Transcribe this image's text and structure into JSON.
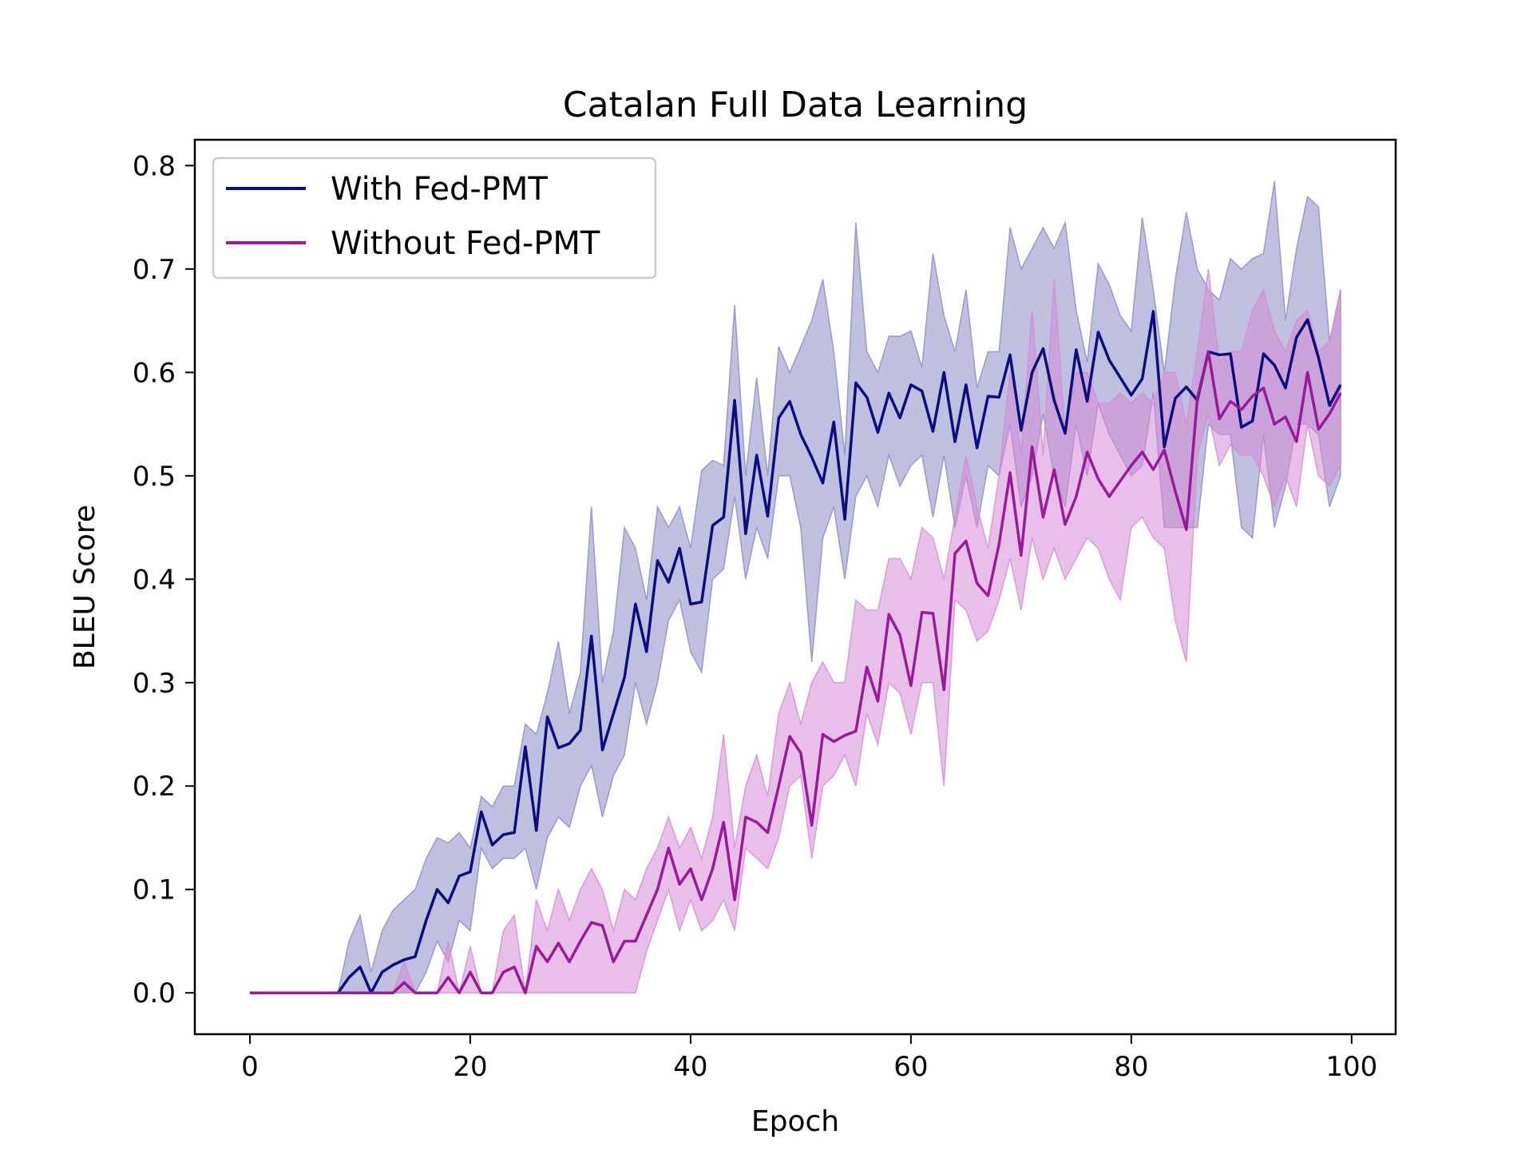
{
  "chart_data": {
    "type": "line",
    "title": "Catalan Full Data Learning",
    "xlabel": "Epoch",
    "ylabel": "BLEU Score",
    "xlim": [
      -5,
      104
    ],
    "ylim": [
      -0.04,
      0.825
    ],
    "x_ticks": [
      0,
      20,
      40,
      60,
      80,
      100
    ],
    "x_tick_labels": [
      "0",
      "20",
      "40",
      "60",
      "80",
      "100"
    ],
    "y_ticks": [
      0.0,
      0.1,
      0.2,
      0.3,
      0.4,
      0.5,
      0.6,
      0.7,
      0.8
    ],
    "y_tick_labels": [
      "0.0",
      "0.1",
      "0.2",
      "0.3",
      "0.4",
      "0.5",
      "0.6",
      "0.7",
      "0.8"
    ],
    "grid": false,
    "legend_position": "top-left",
    "series": [
      {
        "name": "With Fed-PMT",
        "color": "#0d0d80",
        "band_color": "#8a8ac4",
        "x": [
          0,
          1,
          2,
          3,
          4,
          5,
          6,
          7,
          8,
          9,
          10,
          11,
          12,
          13,
          14,
          15,
          16,
          17,
          18,
          19,
          20,
          21,
          22,
          23,
          24,
          25,
          26,
          27,
          28,
          29,
          30,
          31,
          32,
          33,
          34,
          35,
          36,
          37,
          38,
          39,
          40,
          41,
          42,
          43,
          44,
          45,
          46,
          47,
          48,
          49,
          50,
          51,
          52,
          53,
          54,
          55,
          56,
          57,
          58,
          59,
          60,
          61,
          62,
          63,
          64,
          65,
          66,
          67,
          68,
          69,
          70,
          71,
          72,
          73,
          74,
          75,
          76,
          77,
          78,
          79,
          80,
          81,
          82,
          83,
          84,
          85,
          86,
          87,
          88,
          89,
          90,
          91,
          92,
          93,
          94,
          95,
          96,
          97,
          98,
          99
        ],
        "mean": [
          0,
          0,
          0,
          0,
          0,
          0,
          0,
          0,
          0,
          0.015,
          0.025,
          0,
          0.02,
          0.027,
          0.032,
          0.035,
          0.07,
          0.1,
          0.087,
          0.113,
          0.117,
          0.175,
          0.143,
          0.153,
          0.155,
          0.238,
          0.157,
          0.267,
          0.237,
          0.241,
          0.254,
          0.345,
          0.235,
          0.27,
          0.305,
          0.376,
          0.33,
          0.418,
          0.397,
          0.43,
          0.376,
          0.378,
          0.452,
          0.46,
          0.573,
          0.444,
          0.52,
          0.461,
          0.556,
          0.572,
          0.54,
          0.518,
          0.493,
          0.552,
          0.458,
          0.59,
          0.576,
          0.542,
          0.58,
          0.556,
          0.588,
          0.582,
          0.543,
          0.6,
          0.533,
          0.588,
          0.527,
          0.577,
          0.576,
          0.617,
          0.544,
          0.6,
          0.623,
          0.573,
          0.541,
          0.622,
          0.572,
          0.639,
          0.612,
          0.595,
          0.578,
          0.594,
          0.659,
          0.528,
          0.575,
          0.586,
          0.573,
          0.62,
          0.617,
          0.618,
          0.547,
          0.553,
          0.618,
          0.607,
          0.585,
          0.634,
          0.651,
          0.614,
          0.568,
          0.588
        ],
        "lower": [
          0,
          0,
          0,
          0,
          0,
          0,
          0,
          0,
          0,
          0,
          0,
          0,
          0,
          0,
          0,
          0,
          0.02,
          0.05,
          0.03,
          0.07,
          0.06,
          0.14,
          0.12,
          0.13,
          0.13,
          0.14,
          0.1,
          0.15,
          0.17,
          0.16,
          0.2,
          0.22,
          0.17,
          0.21,
          0.23,
          0.3,
          0.26,
          0.3,
          0.36,
          0.38,
          0.33,
          0.31,
          0.4,
          0.41,
          0.48,
          0.4,
          0.45,
          0.42,
          0.5,
          0.5,
          0.45,
          0.32,
          0.44,
          0.47,
          0.4,
          0.48,
          0.5,
          0.47,
          0.52,
          0.49,
          0.51,
          0.52,
          0.46,
          0.52,
          0.45,
          0.5,
          0.45,
          0.51,
          0.5,
          0.55,
          0.47,
          0.5,
          0.56,
          0.5,
          0.47,
          0.55,
          0.5,
          0.57,
          0.54,
          0.52,
          0.5,
          0.51,
          0.58,
          0.45,
          0.45,
          0.45,
          0.45,
          0.55,
          0.54,
          0.54,
          0.45,
          0.44,
          0.54,
          0.45,
          0.49,
          0.55,
          0.55,
          0.54,
          0.47,
          0.5
        ],
        "upper": [
          0,
          0,
          0,
          0,
          0,
          0,
          0,
          0,
          0,
          0.05,
          0.075,
          0.02,
          0.06,
          0.08,
          0.09,
          0.1,
          0.13,
          0.15,
          0.145,
          0.155,
          0.14,
          0.19,
          0.18,
          0.2,
          0.2,
          0.26,
          0.25,
          0.29,
          0.34,
          0.27,
          0.31,
          0.47,
          0.3,
          0.35,
          0.45,
          0.43,
          0.38,
          0.47,
          0.45,
          0.47,
          0.43,
          0.505,
          0.515,
          0.51,
          0.665,
          0.5,
          0.595,
          0.5,
          0.625,
          0.6,
          0.625,
          0.65,
          0.69,
          0.62,
          0.52,
          0.745,
          0.62,
          0.6,
          0.635,
          0.635,
          0.64,
          0.605,
          0.715,
          0.655,
          0.62,
          0.68,
          0.585,
          0.62,
          0.62,
          0.74,
          0.7,
          0.72,
          0.74,
          0.72,
          0.745,
          0.66,
          0.61,
          0.705,
          0.685,
          0.655,
          0.64,
          0.75,
          0.68,
          0.6,
          0.69,
          0.755,
          0.7,
          0.68,
          0.67,
          0.71,
          0.7,
          0.71,
          0.715,
          0.785,
          0.65,
          0.72,
          0.77,
          0.76,
          0.63,
          0.68
        ]
      },
      {
        "name": "Without Fed-PMT",
        "color": "#9a1a9a",
        "band_color": "#d58ad5",
        "x": [
          0,
          1,
          2,
          3,
          4,
          5,
          6,
          7,
          8,
          9,
          10,
          11,
          12,
          13,
          14,
          15,
          16,
          17,
          18,
          19,
          20,
          21,
          22,
          23,
          24,
          25,
          26,
          27,
          28,
          29,
          30,
          31,
          32,
          33,
          34,
          35,
          36,
          37,
          38,
          39,
          40,
          41,
          42,
          43,
          44,
          45,
          46,
          47,
          48,
          49,
          50,
          51,
          52,
          53,
          54,
          55,
          56,
          57,
          58,
          59,
          60,
          61,
          62,
          63,
          64,
          65,
          66,
          67,
          68,
          69,
          70,
          71,
          72,
          73,
          74,
          75,
          76,
          77,
          78,
          79,
          80,
          81,
          82,
          83,
          84,
          85,
          86,
          87,
          88,
          89,
          90,
          91,
          92,
          93,
          94,
          95,
          96,
          97,
          98,
          99
        ],
        "mean": [
          0,
          0,
          0,
          0,
          0,
          0,
          0,
          0,
          0,
          0,
          0,
          0,
          0,
          0,
          0.01,
          0,
          0,
          0,
          0.015,
          0,
          0.02,
          0,
          0,
          0.02,
          0.025,
          0,
          0.045,
          0.03,
          0.048,
          0.03,
          0.05,
          0.068,
          0.065,
          0.03,
          0.05,
          0.05,
          0.075,
          0.1,
          0.14,
          0.105,
          0.12,
          0.09,
          0.12,
          0.165,
          0.09,
          0.17,
          0.165,
          0.155,
          0.2,
          0.248,
          0.232,
          0.162,
          0.25,
          0.243,
          0.249,
          0.253,
          0.315,
          0.282,
          0.366,
          0.346,
          0.297,
          0.368,
          0.367,
          0.293,
          0.425,
          0.437,
          0.396,
          0.384,
          0.434,
          0.503,
          0.423,
          0.528,
          0.46,
          0.506,
          0.453,
          0.48,
          0.523,
          0.497,
          0.48,
          0.495,
          0.51,
          0.523,
          0.506,
          0.525,
          0.485,
          0.448,
          0.575,
          0.62,
          0.555,
          0.572,
          0.564,
          0.577,
          0.585,
          0.55,
          0.557,
          0.533,
          0.6,
          0.545,
          0.56,
          0.58
        ],
        "lower": [
          0,
          0,
          0,
          0,
          0,
          0,
          0,
          0,
          0,
          0,
          0,
          0,
          0,
          0,
          0,
          0,
          0,
          0,
          0,
          0,
          0,
          0,
          0,
          0,
          0,
          0,
          0,
          0,
          0,
          0,
          0,
          0,
          0,
          0,
          0,
          0,
          0.04,
          0.07,
          0.1,
          0.06,
          0.09,
          0.06,
          0.07,
          0.09,
          0.06,
          0.14,
          0.13,
          0.12,
          0.15,
          0.2,
          0.21,
          0.13,
          0.2,
          0.21,
          0.23,
          0.2,
          0.27,
          0.24,
          0.3,
          0.29,
          0.25,
          0.3,
          0.3,
          0.2,
          0.38,
          0.37,
          0.34,
          0.35,
          0.38,
          0.42,
          0.37,
          0.44,
          0.4,
          0.43,
          0.4,
          0.42,
          0.44,
          0.43,
          0.4,
          0.38,
          0.45,
          0.46,
          0.44,
          0.43,
          0.36,
          0.32,
          0.52,
          0.56,
          0.51,
          0.53,
          0.52,
          0.52,
          0.5,
          0.47,
          0.5,
          0.47,
          0.55,
          0.5,
          0.49,
          0.51
        ],
        "upper": [
          0,
          0,
          0,
          0,
          0,
          0,
          0,
          0,
          0,
          0,
          0,
          0,
          0,
          0,
          0.03,
          0,
          0,
          0,
          0.05,
          0,
          0.045,
          0,
          0,
          0.06,
          0.075,
          0,
          0.09,
          0.06,
          0.1,
          0.07,
          0.1,
          0.12,
          0.1,
          0.06,
          0.1,
          0.09,
          0.12,
          0.14,
          0.17,
          0.14,
          0.16,
          0.13,
          0.17,
          0.25,
          0.14,
          0.2,
          0.23,
          0.19,
          0.27,
          0.3,
          0.26,
          0.3,
          0.32,
          0.3,
          0.3,
          0.38,
          0.37,
          0.37,
          0.42,
          0.42,
          0.4,
          0.45,
          0.44,
          0.4,
          0.46,
          0.52,
          0.47,
          0.43,
          0.5,
          0.6,
          0.52,
          0.66,
          0.52,
          0.69,
          0.54,
          0.6,
          0.6,
          0.57,
          0.57,
          0.58,
          0.57,
          0.58,
          0.57,
          0.6,
          0.6,
          0.55,
          0.62,
          0.7,
          0.61,
          0.62,
          0.62,
          0.66,
          0.68,
          0.64,
          0.62,
          0.65,
          0.66,
          0.62,
          0.63,
          0.68
        ]
      }
    ]
  }
}
